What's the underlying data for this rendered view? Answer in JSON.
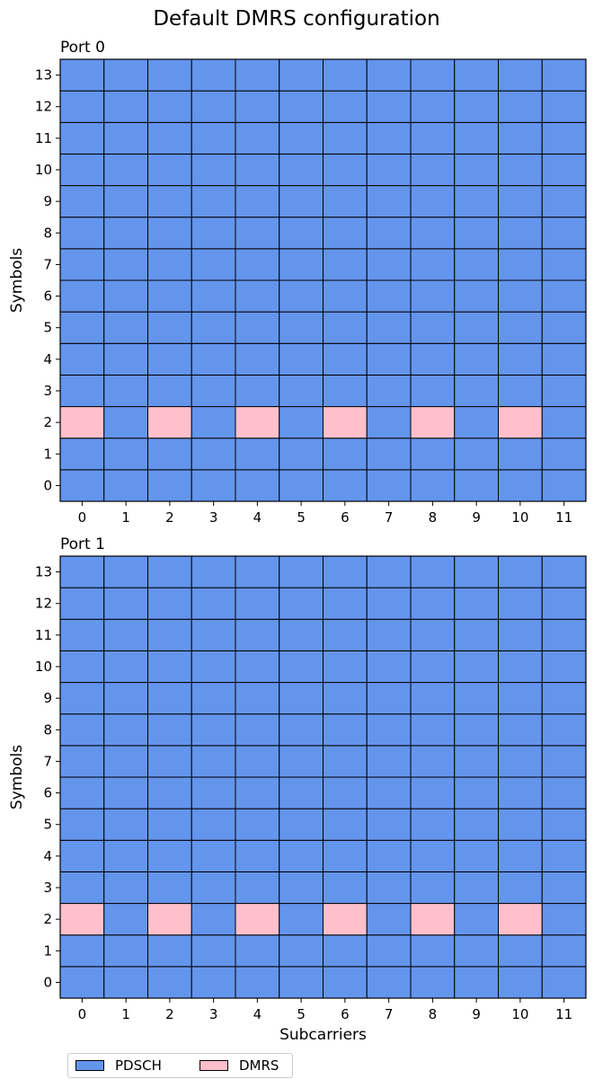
{
  "title": "Default DMRS configuration",
  "colors": {
    "PDSCH": "#6495ED",
    "DMRS": "#FFC0CB",
    "grid": "#000000"
  },
  "chart_data": [
    {
      "type": "heatmap",
      "title": "Port 0",
      "xlabel": "",
      "ylabel": "Symbols",
      "x": [
        0,
        1,
        2,
        3,
        4,
        5,
        6,
        7,
        8,
        9,
        10,
        11
      ],
      "y": [
        0,
        1,
        2,
        3,
        4,
        5,
        6,
        7,
        8,
        9,
        10,
        11,
        12,
        13
      ],
      "cells": [
        [
          "PDSCH",
          "PDSCH",
          "PDSCH",
          "PDSCH",
          "PDSCH",
          "PDSCH",
          "PDSCH",
          "PDSCH",
          "PDSCH",
          "PDSCH",
          "PDSCH",
          "PDSCH"
        ],
        [
          "PDSCH",
          "PDSCH",
          "PDSCH",
          "PDSCH",
          "PDSCH",
          "PDSCH",
          "PDSCH",
          "PDSCH",
          "PDSCH",
          "PDSCH",
          "PDSCH",
          "PDSCH"
        ],
        [
          "DMRS",
          "PDSCH",
          "DMRS",
          "PDSCH",
          "DMRS",
          "PDSCH",
          "DMRS",
          "PDSCH",
          "DMRS",
          "PDSCH",
          "DMRS",
          "PDSCH"
        ],
        [
          "PDSCH",
          "PDSCH",
          "PDSCH",
          "PDSCH",
          "PDSCH",
          "PDSCH",
          "PDSCH",
          "PDSCH",
          "PDSCH",
          "PDSCH",
          "PDSCH",
          "PDSCH"
        ],
        [
          "PDSCH",
          "PDSCH",
          "PDSCH",
          "PDSCH",
          "PDSCH",
          "PDSCH",
          "PDSCH",
          "PDSCH",
          "PDSCH",
          "PDSCH",
          "PDSCH",
          "PDSCH"
        ],
        [
          "PDSCH",
          "PDSCH",
          "PDSCH",
          "PDSCH",
          "PDSCH",
          "PDSCH",
          "PDSCH",
          "PDSCH",
          "PDSCH",
          "PDSCH",
          "PDSCH",
          "PDSCH"
        ],
        [
          "PDSCH",
          "PDSCH",
          "PDSCH",
          "PDSCH",
          "PDSCH",
          "PDSCH",
          "PDSCH",
          "PDSCH",
          "PDSCH",
          "PDSCH",
          "PDSCH",
          "PDSCH"
        ],
        [
          "PDSCH",
          "PDSCH",
          "PDSCH",
          "PDSCH",
          "PDSCH",
          "PDSCH",
          "PDSCH",
          "PDSCH",
          "PDSCH",
          "PDSCH",
          "PDSCH",
          "PDSCH"
        ],
        [
          "PDSCH",
          "PDSCH",
          "PDSCH",
          "PDSCH",
          "PDSCH",
          "PDSCH",
          "PDSCH",
          "PDSCH",
          "PDSCH",
          "PDSCH",
          "PDSCH",
          "PDSCH"
        ],
        [
          "PDSCH",
          "PDSCH",
          "PDSCH",
          "PDSCH",
          "PDSCH",
          "PDSCH",
          "PDSCH",
          "PDSCH",
          "PDSCH",
          "PDSCH",
          "PDSCH",
          "PDSCH"
        ],
        [
          "PDSCH",
          "PDSCH",
          "PDSCH",
          "PDSCH",
          "PDSCH",
          "PDSCH",
          "PDSCH",
          "PDSCH",
          "PDSCH",
          "PDSCH",
          "PDSCH",
          "PDSCH"
        ],
        [
          "PDSCH",
          "PDSCH",
          "PDSCH",
          "PDSCH",
          "PDSCH",
          "PDSCH",
          "PDSCH",
          "PDSCH",
          "PDSCH",
          "PDSCH",
          "PDSCH",
          "PDSCH"
        ],
        [
          "PDSCH",
          "PDSCH",
          "PDSCH",
          "PDSCH",
          "PDSCH",
          "PDSCH",
          "PDSCH",
          "PDSCH",
          "PDSCH",
          "PDSCH",
          "PDSCH",
          "PDSCH"
        ],
        [
          "PDSCH",
          "PDSCH",
          "PDSCH",
          "PDSCH",
          "PDSCH",
          "PDSCH",
          "PDSCH",
          "PDSCH",
          "PDSCH",
          "PDSCH",
          "PDSCH",
          "PDSCH"
        ]
      ]
    },
    {
      "type": "heatmap",
      "title": "Port 1",
      "xlabel": "Subcarriers",
      "ylabel": "Symbols",
      "x": [
        0,
        1,
        2,
        3,
        4,
        5,
        6,
        7,
        8,
        9,
        10,
        11
      ],
      "y": [
        0,
        1,
        2,
        3,
        4,
        5,
        6,
        7,
        8,
        9,
        10,
        11,
        12,
        13
      ],
      "cells": [
        [
          "PDSCH",
          "PDSCH",
          "PDSCH",
          "PDSCH",
          "PDSCH",
          "PDSCH",
          "PDSCH",
          "PDSCH",
          "PDSCH",
          "PDSCH",
          "PDSCH",
          "PDSCH"
        ],
        [
          "PDSCH",
          "PDSCH",
          "PDSCH",
          "PDSCH",
          "PDSCH",
          "PDSCH",
          "PDSCH",
          "PDSCH",
          "PDSCH",
          "PDSCH",
          "PDSCH",
          "PDSCH"
        ],
        [
          "DMRS",
          "PDSCH",
          "DMRS",
          "PDSCH",
          "DMRS",
          "PDSCH",
          "DMRS",
          "PDSCH",
          "DMRS",
          "PDSCH",
          "DMRS",
          "PDSCH"
        ],
        [
          "PDSCH",
          "PDSCH",
          "PDSCH",
          "PDSCH",
          "PDSCH",
          "PDSCH",
          "PDSCH",
          "PDSCH",
          "PDSCH",
          "PDSCH",
          "PDSCH",
          "PDSCH"
        ],
        [
          "PDSCH",
          "PDSCH",
          "PDSCH",
          "PDSCH",
          "PDSCH",
          "PDSCH",
          "PDSCH",
          "PDSCH",
          "PDSCH",
          "PDSCH",
          "PDSCH",
          "PDSCH"
        ],
        [
          "PDSCH",
          "PDSCH",
          "PDSCH",
          "PDSCH",
          "PDSCH",
          "PDSCH",
          "PDSCH",
          "PDSCH",
          "PDSCH",
          "PDSCH",
          "PDSCH",
          "PDSCH"
        ],
        [
          "PDSCH",
          "PDSCH",
          "PDSCH",
          "PDSCH",
          "PDSCH",
          "PDSCH",
          "PDSCH",
          "PDSCH",
          "PDSCH",
          "PDSCH",
          "PDSCH",
          "PDSCH"
        ],
        [
          "PDSCH",
          "PDSCH",
          "PDSCH",
          "PDSCH",
          "PDSCH",
          "PDSCH",
          "PDSCH",
          "PDSCH",
          "PDSCH",
          "PDSCH",
          "PDSCH",
          "PDSCH"
        ],
        [
          "PDSCH",
          "PDSCH",
          "PDSCH",
          "PDSCH",
          "PDSCH",
          "PDSCH",
          "PDSCH",
          "PDSCH",
          "PDSCH",
          "PDSCH",
          "PDSCH",
          "PDSCH"
        ],
        [
          "PDSCH",
          "PDSCH",
          "PDSCH",
          "PDSCH",
          "PDSCH",
          "PDSCH",
          "PDSCH",
          "PDSCH",
          "PDSCH",
          "PDSCH",
          "PDSCH",
          "PDSCH"
        ],
        [
          "PDSCH",
          "PDSCH",
          "PDSCH",
          "PDSCH",
          "PDSCH",
          "PDSCH",
          "PDSCH",
          "PDSCH",
          "PDSCH",
          "PDSCH",
          "PDSCH",
          "PDSCH"
        ],
        [
          "PDSCH",
          "PDSCH",
          "PDSCH",
          "PDSCH",
          "PDSCH",
          "PDSCH",
          "PDSCH",
          "PDSCH",
          "PDSCH",
          "PDSCH",
          "PDSCH",
          "PDSCH"
        ],
        [
          "PDSCH",
          "PDSCH",
          "PDSCH",
          "PDSCH",
          "PDSCH",
          "PDSCH",
          "PDSCH",
          "PDSCH",
          "PDSCH",
          "PDSCH",
          "PDSCH",
          "PDSCH"
        ],
        [
          "PDSCH",
          "PDSCH",
          "PDSCH",
          "PDSCH",
          "PDSCH",
          "PDSCH",
          "PDSCH",
          "PDSCH",
          "PDSCH",
          "PDSCH",
          "PDSCH",
          "PDSCH"
        ]
      ]
    }
  ],
  "legend": {
    "placement": "bottom-left",
    "items": [
      {
        "label": "PDSCH",
        "color": "#6495ED"
      },
      {
        "label": "DMRS",
        "color": "#FFC0CB"
      }
    ]
  }
}
